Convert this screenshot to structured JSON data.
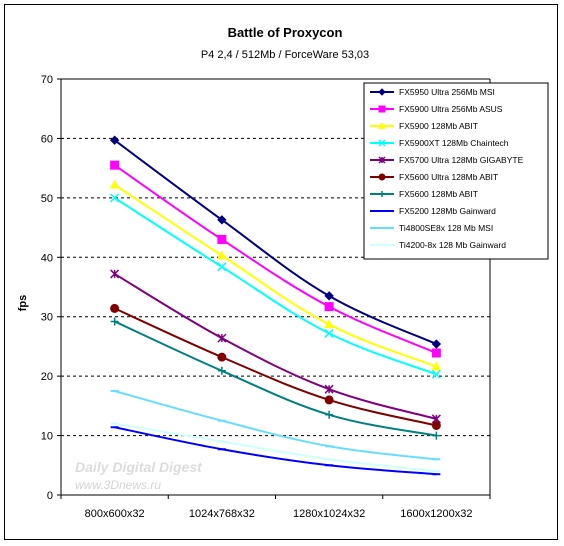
{
  "chart_data": {
    "type": "line",
    "title": "Battle of Proxycon",
    "subtitle": "P4 2,4 / 512Mb / ForceWare 53,03",
    "xlabel": "",
    "ylabel": "fps",
    "ylim": [
      0,
      70
    ],
    "yticks": [
      0,
      10,
      20,
      30,
      40,
      50,
      60,
      70
    ],
    "grid": true,
    "legend_position": "top-right",
    "categories": [
      "800x600x32",
      "1024x768x32",
      "1280x1024x32",
      "1600x1200x32"
    ],
    "series": [
      {
        "name": "FX5950 Ultra 256Mb MSI",
        "values": [
          59.7,
          46.3,
          33.5,
          25.4
        ],
        "color": "#000080",
        "marker": "diamond"
      },
      {
        "name": "FX5900 Ultra 256Mb ASUS",
        "values": [
          55.5,
          43.0,
          31.7,
          23.9
        ],
        "color": "#ff00ff",
        "marker": "square"
      },
      {
        "name": "FX5900 128Mb ABIT",
        "values": [
          52.2,
          40.3,
          28.7,
          21.6
        ],
        "color": "#ffff00",
        "marker": "triangle"
      },
      {
        "name": "FX5900XT 128Mb Chaintech",
        "values": [
          50.0,
          38.4,
          27.2,
          20.3
        ],
        "color": "#00ffff",
        "marker": "x"
      },
      {
        "name": "FX5700 Ultra 128Mb GIGABYTE",
        "values": [
          37.2,
          26.4,
          17.8,
          12.8
        ],
        "color": "#800080",
        "marker": "star"
      },
      {
        "name": "FX5600 Ultra 128Mb ABIT",
        "values": [
          31.4,
          23.2,
          16.0,
          11.7
        ],
        "color": "#800000",
        "marker": "circle"
      },
      {
        "name": "FX5600 128Mb ABIT",
        "values": [
          29.2,
          20.9,
          13.5,
          10.0
        ],
        "color": "#008080",
        "marker": "plus"
      },
      {
        "name": "FX5200 128Mb Gainward",
        "values": [
          11.4,
          7.7,
          5.0,
          3.5
        ],
        "color": "#0000ff",
        "marker": "dash"
      },
      {
        "name": "Ti4800SE8x 128 Mb MSI",
        "values": [
          17.5,
          12.5,
          8.2,
          6.0
        ],
        "color": "#66ddff",
        "marker": "dash"
      },
      {
        "name": "Ti4200-8x 128 Mb Gainward",
        "values": [
          12.0,
          9.0,
          6.0,
          4.0
        ],
        "color": "#ccffff",
        "marker": "dash"
      }
    ],
    "watermark": [
      "Daily Digital Digest",
      "www.3Dnews.ru"
    ]
  }
}
